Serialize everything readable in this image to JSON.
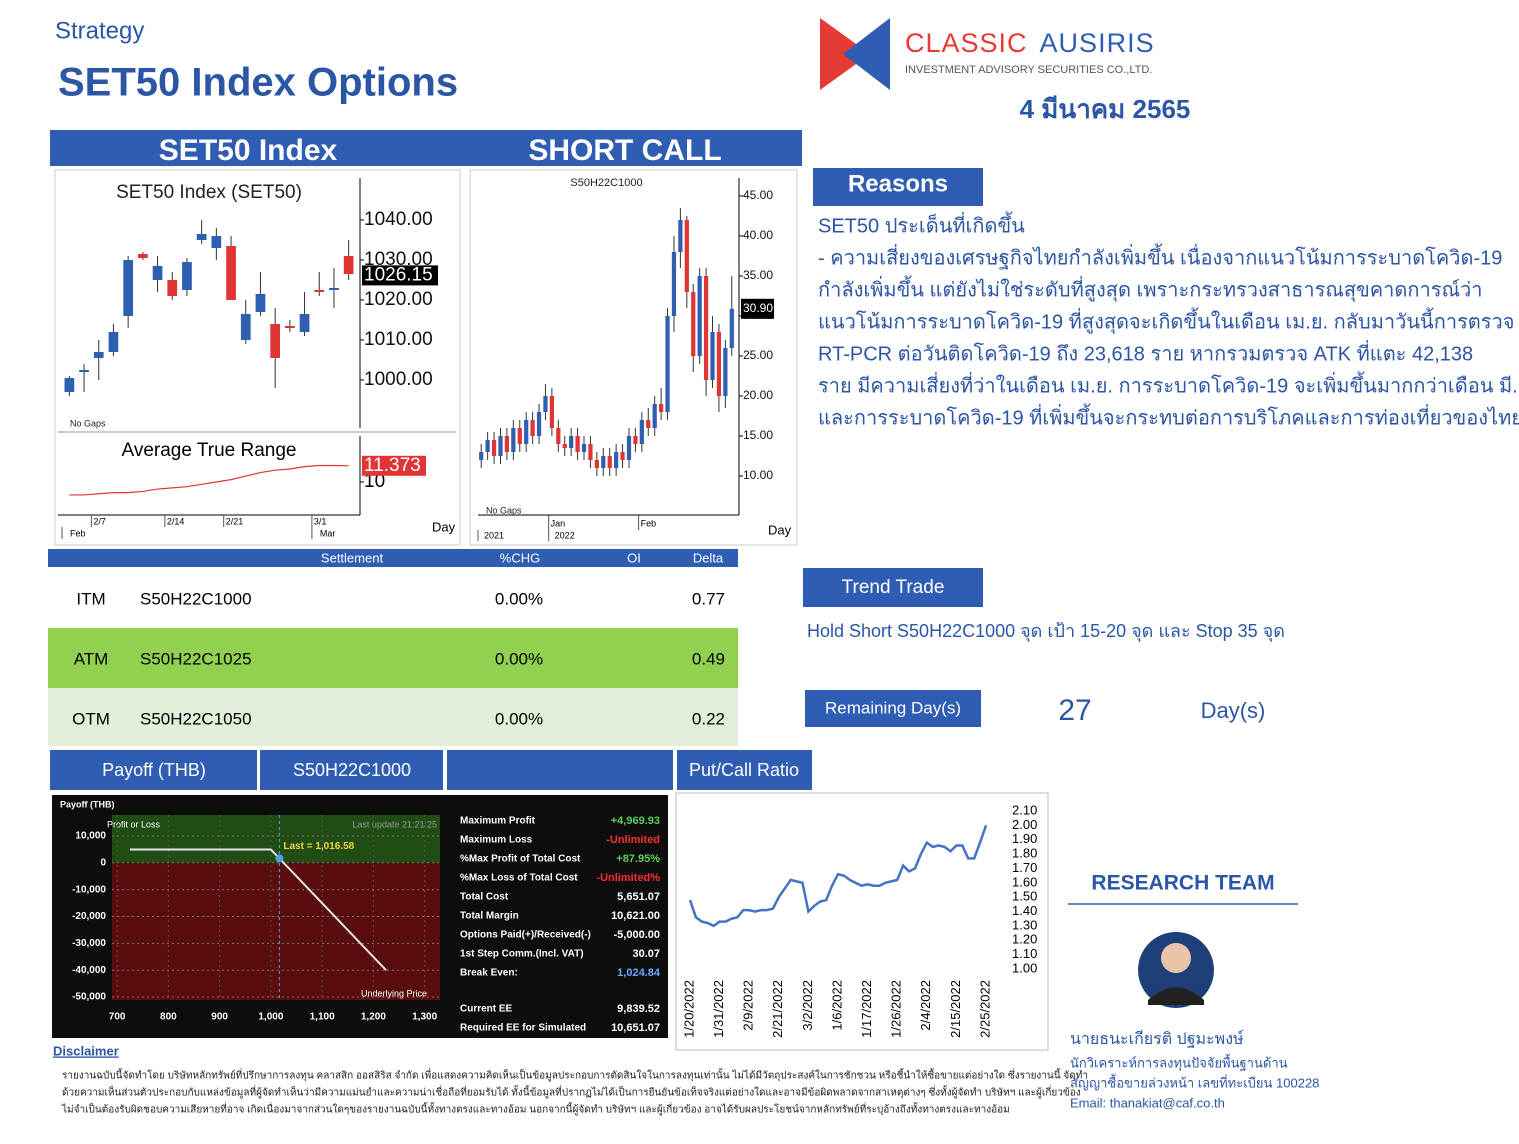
{
  "header": {
    "category": "Strategy",
    "title": "SET50 Index Options",
    "company_1": "CLASSIC",
    "company_2": "AUSIRIS",
    "company_sub": "INVESTMENT ADVISORY SECURITIES CO.,LTD.",
    "date": "4 มีนาคม 2565"
  },
  "sections": {
    "set50": "SET50 Index",
    "short_call": "SHORT CALL"
  },
  "reasons": {
    "heading": "Reasons",
    "lines": [
      "SET50 ประเด็นที่เกิดขึ้น",
      "- ความเสี่ยงของเศรษฐกิจไทยกำลังเพิ่มขึ้น เนื่องจากแนวโน้มการระบาดโควิด-19",
      "กำลังเพิ่มขึ้น แต่ยังไม่ใช่ระดับที่สูงสุด เพราะกระทรวงสาธารณสุขคาดการณ์ว่า",
      "แนวโน้มการระบาดโควิด-19 ที่สูงสุดจะเกิดขึ้นในเดือน เม.ย. กลับมาวันนี้การตรวจ",
      "RT-PCR ต่อวันติดโควิด-19 ถึง 23,618 ราย หากรวมตรวจ ATK ที่แตะ 42,138",
      "ราย มีความเสี่ยงที่ว่าในเดือน เม.ย. การระบาดโควิด-19 จะเพิ่มขึ้นมากกว่าเดือน มี.ค.",
      "และการระบาดโควิด-19 ที่เพิ่มขึ้นจะกระทบต่อการบริโภคและการท่องเที่ยวของไทย"
    ]
  },
  "table": {
    "columns": [
      "Settlement",
      "%CHG",
      "OI",
      "Delta"
    ],
    "rows": [
      [
        "ITM",
        "S50H22C1000",
        "0.00%",
        "0.77"
      ],
      [
        "ATM",
        "S50H22C1025",
        "0.00%",
        "0.49"
      ],
      [
        "OTM",
        "S50H22C1050",
        "0.00%",
        "0.22"
      ]
    ]
  },
  "trend": {
    "heading": "Trend Trade",
    "text": "Hold Short S50H22C1000 จุด เป้า 15-20 จุด และ Stop 35 จุด"
  },
  "remaining": {
    "label": "Remaining Day(s)",
    "value": "27",
    "unit": "Day(s)"
  },
  "bottom_bar": {
    "payoff": "Payoff (THB)",
    "series": "S50H22C1000",
    "pcr": "Put/Call Ratio"
  },
  "research": {
    "heading": "RESEARCH TEAM",
    "name": "นายธนะเกียรติ ปฐมะพงษ์",
    "lines": [
      "นักวิเคราะห์การลงทุนปัจจัยพื้นฐานด้าน",
      "สัญญาซื้อขายล่วงหน้า เลขที่ทะเบียน 100228",
      "Email: thanakiat@caf.co.th"
    ]
  },
  "disclaimer": {
    "heading": "Disclaimer",
    "lines": [
      "รายงานฉบับนี้จัดทำโดย บริษัทหลักทรัพย์ที่ปรึกษาการลงทุน คลาสสิก ออสสิริส จำกัด เพื่อแสดงความคิดเห็นเป็นข้อมูลประกอบการตัดสินใจในการลงทุนเท่านั้น ไม่ได้มีวัตถุประสงค์ในการชักชวน หรือชี้นำให้ซื้อขายแต่อย่างใด ซึ่งรายงานนี้ จัดทำ",
      "ด้วยความเห็นส่วนตัวประกอบกับแหล่งข้อมูลที่ผู้จัดทำเห็นว่ามีความแม่นยำและความน่าเชื่อถือที่ยอมรับได้ ทั้งนี้ข้อมูลที่ปรากฏไม่ได้เป็นการยืนยันข้อเท็จจริงแต่อย่างใดและอาจมีข้อผิดพลาดจากสาเหตุต่างๆ ซึ่งทั้งผู้จัดทำ บริษัทฯ และผู้เกี่ยวข้อง",
      "ไม่จำเป็นต้องรับผิดชอบความเสียหายที่อาจ เกิดเนื่องมาจากส่วนใดๆของรายงานฉบับนี้ทั้งทางตรงและทางอ้อม นอกจากนี้ผู้จัดทำ บริษัทฯ และผู้เกี่ยวข้อง อาจได้รับผลประโยชน์จากหลักทรัพย์ที่ระบุอ้างถึงทั้งทางตรงและทางอ้อม"
    ]
  },
  "chart_data": [
    {
      "type": "candlestick",
      "title": "SET50 Index (SET50)",
      "note": "No Gaps",
      "up_color": "#2e5fb0",
      "down_color": "#e03535",
      "open": [
        997,
        1002,
        1005.5,
        1007,
        1016,
        1031.5,
        1025,
        1025,
        1022.5,
        1035,
        1033,
        1033.5,
        1010,
        1017,
        1014,
        1013.5,
        1012,
        1022.5,
        1022.5,
        1031
      ],
      "close": [
        1000.5,
        1002.5,
        1007,
        1012,
        1030,
        1030.5,
        1028.5,
        1021,
        1029.5,
        1036.5,
        1036,
        1020,
        1016.5,
        1021.5,
        1005.5,
        1013,
        1016.5,
        1022,
        1023,
        1026.5
      ],
      "high": [
        1001,
        1004,
        1010,
        1014,
        1031,
        1032,
        1031,
        1027,
        1030.5,
        1040,
        1038,
        1036,
        1020,
        1027,
        1018,
        1015,
        1022,
        1027,
        1028,
        1035
      ],
      "low": [
        996,
        997,
        1000,
        1006,
        1013,
        1030,
        1022,
        1020,
        1021,
        1034,
        1030,
        1020,
        1009,
        1016,
        998,
        1012,
        1011,
        1021,
        1018,
        1025
      ],
      "ylim": [
        988,
        1050.5
      ],
      "yticks": [
        {
          "value": 1000,
          "label": "1000.00"
        },
        {
          "value": 1010,
          "label": "1010.00"
        },
        {
          "value": 1020,
          "label": "1020.00"
        },
        {
          "value": 1030,
          "label": "1030.00"
        },
        {
          "value": 1040,
          "label": "1040.00"
        }
      ],
      "last": 1026.15
    },
    {
      "type": "line",
      "title": "Average True Range",
      "color": "#e03535",
      "x_label": "Day",
      "categories": [
        null,
        null,
        "2/7",
        null,
        null,
        null,
        null,
        "2/14",
        null,
        null,
        null,
        "2/21",
        null,
        null,
        null,
        null,
        null,
        "3/1",
        null,
        null
      ],
      "months": [
        "Feb",
        null,
        null,
        null,
        null,
        null,
        null,
        null,
        null,
        null,
        null,
        null,
        null,
        null,
        null,
        null,
        null,
        "Mar",
        null,
        null
      ],
      "values": [
        8.9,
        8.9,
        9.0,
        9.1,
        9.1,
        9.2,
        9.4,
        9.5,
        9.6,
        9.8,
        10.0,
        10.2,
        10.5,
        10.8,
        11.0,
        11.1,
        11.3,
        11.4,
        11.4,
        11.373
      ],
      "ylim": [
        7.2,
        13.9
      ],
      "yticks": [
        10
      ]
    },
    {
      "type": "candlestick",
      "title": "S50H22C1000",
      "note": "No Gaps",
      "x_label": "Day",
      "up_color": "#2e5fb0",
      "down_color": "#e03535",
      "categories": [
        null,
        null,
        null,
        null,
        null,
        null,
        null,
        null,
        null,
        null,
        null,
        "Jan",
        null,
        null,
        null,
        null,
        null,
        null,
        null,
        null,
        null,
        null,
        null,
        null,
        null,
        "Feb",
        null,
        null,
        null,
        null,
        null,
        null,
        null,
        null,
        null,
        null,
        null,
        null,
        null,
        null
      ],
      "years": [
        "2021",
        null,
        null,
        null,
        null,
        null,
        null,
        null,
        null,
        null,
        null,
        "2022",
        null,
        null,
        null,
        null,
        null,
        null,
        null,
        null,
        null,
        null,
        null,
        null,
        null,
        null,
        null,
        null,
        null,
        null,
        null,
        null,
        null,
        null,
        null,
        null,
        null,
        null,
        null,
        null
      ],
      "open": [
        12,
        13,
        14.5,
        12.5,
        15,
        13,
        16,
        14,
        17,
        15,
        18,
        20,
        16,
        14,
        13.5,
        15,
        13,
        14,
        12,
        11,
        12.5,
        11,
        13,
        12,
        15,
        14,
        17,
        16,
        19,
        18,
        30,
        38,
        42,
        33,
        25,
        35,
        22,
        28,
        20,
        26
      ],
      "close": [
        13,
        14.5,
        12.5,
        15,
        13,
        16,
        14,
        17,
        15,
        18,
        20,
        16,
        14,
        13.5,
        15,
        13,
        14,
        12,
        11,
        12.5,
        11,
        13,
        12,
        15,
        14,
        17,
        16,
        19,
        18,
        30,
        38,
        42,
        33,
        25,
        35,
        22,
        28,
        20,
        26,
        30.9
      ],
      "high": [
        14,
        15.5,
        15.5,
        16,
        16,
        17,
        17,
        18,
        18,
        19,
        21.5,
        21,
        17,
        15,
        16,
        16,
        15,
        15,
        13,
        13.5,
        13.5,
        14,
        14,
        16,
        16,
        18,
        18.5,
        20,
        21,
        31,
        40,
        43.5,
        42.5,
        34,
        36,
        36,
        30,
        29,
        27,
        35
      ],
      "low": [
        11,
        12,
        11.5,
        11.5,
        12,
        12,
        13,
        13,
        14,
        14,
        17,
        15,
        13,
        12.5,
        12.5,
        12,
        12,
        11,
        10,
        10,
        10,
        10,
        11,
        11,
        13,
        13,
        15,
        15,
        17,
        17,
        28,
        36,
        31,
        23,
        24,
        20,
        21,
        18,
        18.5,
        25
      ],
      "ylim": [
        5.125,
        47.25
      ],
      "yticks": [
        {
          "value": 10,
          "label": "10.00"
        },
        {
          "value": 15,
          "label": "15.00"
        },
        {
          "value": 20,
          "label": "20.00"
        },
        {
          "value": 25,
          "label": "25.00"
        },
        {
          "value": 30,
          "label": "30.00"
        },
        {
          "value": 35,
          "label": "35.00"
        },
        {
          "value": 40,
          "label": "40.00"
        },
        {
          "value": 45,
          "label": "45.00"
        }
      ],
      "last": 30.9,
      "last_label": "30.90"
    },
    {
      "type": "line",
      "title": "Payoff (THB)",
      "y_label": "Profit or Loss",
      "x_label": "Underlying Price",
      "updated": "Last update 21:21:25",
      "color": "#e6e6e6",
      "x": [
        725,
        1000,
        1225
      ],
      "values": [
        4969.93,
        4969.93,
        -40030
      ],
      "xlim": [
        690,
        1330
      ],
      "ylim": [
        -51100,
        17800
      ],
      "xticks": [
        700,
        800,
        900,
        {
          "value": 1000,
          "label": "1,000"
        },
        {
          "value": 1100,
          "label": "1,100"
        },
        {
          "value": 1200,
          "label": "1,200"
        },
        {
          "value": 1300,
          "label": "1,300"
        }
      ],
      "yticks": [
        {
          "value": 10000,
          "label": "10,000"
        },
        0,
        {
          "value": -10000,
          "label": "-10,000"
        },
        {
          "value": -20000,
          "label": "-20,000"
        },
        {
          "value": -30000,
          "label": "-30,000"
        },
        {
          "value": -40000,
          "label": "-40,000"
        },
        {
          "value": -50000,
          "label": "-50,000"
        }
      ],
      "last": {
        "value": 1016.58,
        "label": "Last = 1,016.58"
      },
      "stats": [
        {
          "label": "Maximum Profit",
          "value": "+4,969.93",
          "color": "#5ad05a"
        },
        {
          "label": "Maximum Loss",
          "value": "-Unlimited",
          "color": "#ff3030"
        },
        {
          "label": "%Max Profit of Total Cost",
          "value": "+87.95%",
          "color": "#5ad05a"
        },
        {
          "label": "%Max Loss of Total Cost",
          "value": "-Unlimited%",
          "color": "#ff3030"
        },
        {
          "label": "Total Cost",
          "value": "5,651.07",
          "color": "#ffffff"
        },
        {
          "label": "Total Margin",
          "value": "10,621.00",
          "color": "#ffffff"
        },
        {
          "label": "Options Paid(+)/Received(-)",
          "value": "-5,000.00",
          "color": "#ffffff"
        },
        {
          "label": "1st Step Comm.(Incl. VAT)",
          "value": "30.07",
          "color": "#ffffff"
        },
        {
          "label": "Break Even:",
          "value": "1,024.84",
          "color": "#6fa8ff"
        },
        {
          "label": "Current EE",
          "value": "9,839.52",
          "color": "#ffffff"
        },
        {
          "label": "Required EE for Simulated",
          "value": "10,651.07",
          "color": "#ffffff"
        }
      ]
    },
    {
      "type": "line",
      "color": "#4472c4",
      "categories": [
        "1/20/2022",
        null,
        null,
        null,
        null,
        "1/31/2022",
        null,
        null,
        null,
        null,
        "2/9/2022",
        null,
        null,
        null,
        null,
        "2/21/2022",
        null,
        null,
        null,
        null,
        "3/2/2022",
        null,
        null,
        null,
        null,
        "1/6/2022",
        null,
        null,
        null,
        null,
        "1/17/2022",
        null,
        null,
        null,
        null,
        "1/26/2022",
        null,
        null,
        null,
        null,
        "2/4/2022",
        null,
        null,
        null,
        null,
        "2/15/2022",
        null,
        null,
        null,
        null,
        "2/25/2022"
      ],
      "values": [
        1.48,
        1.36,
        1.33,
        1.32,
        1.3,
        1.33,
        1.33,
        1.35,
        1.36,
        1.41,
        1.41,
        1.4,
        1.41,
        1.41,
        1.42,
        1.5,
        1.56,
        1.62,
        1.61,
        1.6,
        1.4,
        1.44,
        1.47,
        1.48,
        1.58,
        1.66,
        1.65,
        1.62,
        1.6,
        1.58,
        1.59,
        1.58,
        1.58,
        1.6,
        1.61,
        1.62,
        1.72,
        1.68,
        1.7,
        1.8,
        1.88,
        1.85,
        1.86,
        1.85,
        1.82,
        1.86,
        1.86,
        1.77,
        1.77,
        1.88,
        2.0
      ],
      "ylim": [
        1.0,
        2.1
      ],
      "yticks": [
        {
          "value": 1.0,
          "label": "1.00"
        },
        {
          "value": 1.1,
          "label": "1.10"
        },
        {
          "value": 1.2,
          "label": "1.20"
        },
        {
          "value": 1.3,
          "label": "1.30"
        },
        {
          "value": 1.4,
          "label": "1.40"
        },
        {
          "value": 1.5,
          "label": "1.50"
        },
        {
          "value": 1.6,
          "label": "1.60"
        },
        {
          "value": 1.7,
          "label": "1.70"
        },
        {
          "value": 1.8,
          "label": "1.80"
        },
        {
          "value": 1.9,
          "label": "1.90"
        },
        {
          "value": 2.0,
          "label": "2.00"
        },
        {
          "value": 2.1,
          "label": "2.10"
        }
      ]
    }
  ]
}
